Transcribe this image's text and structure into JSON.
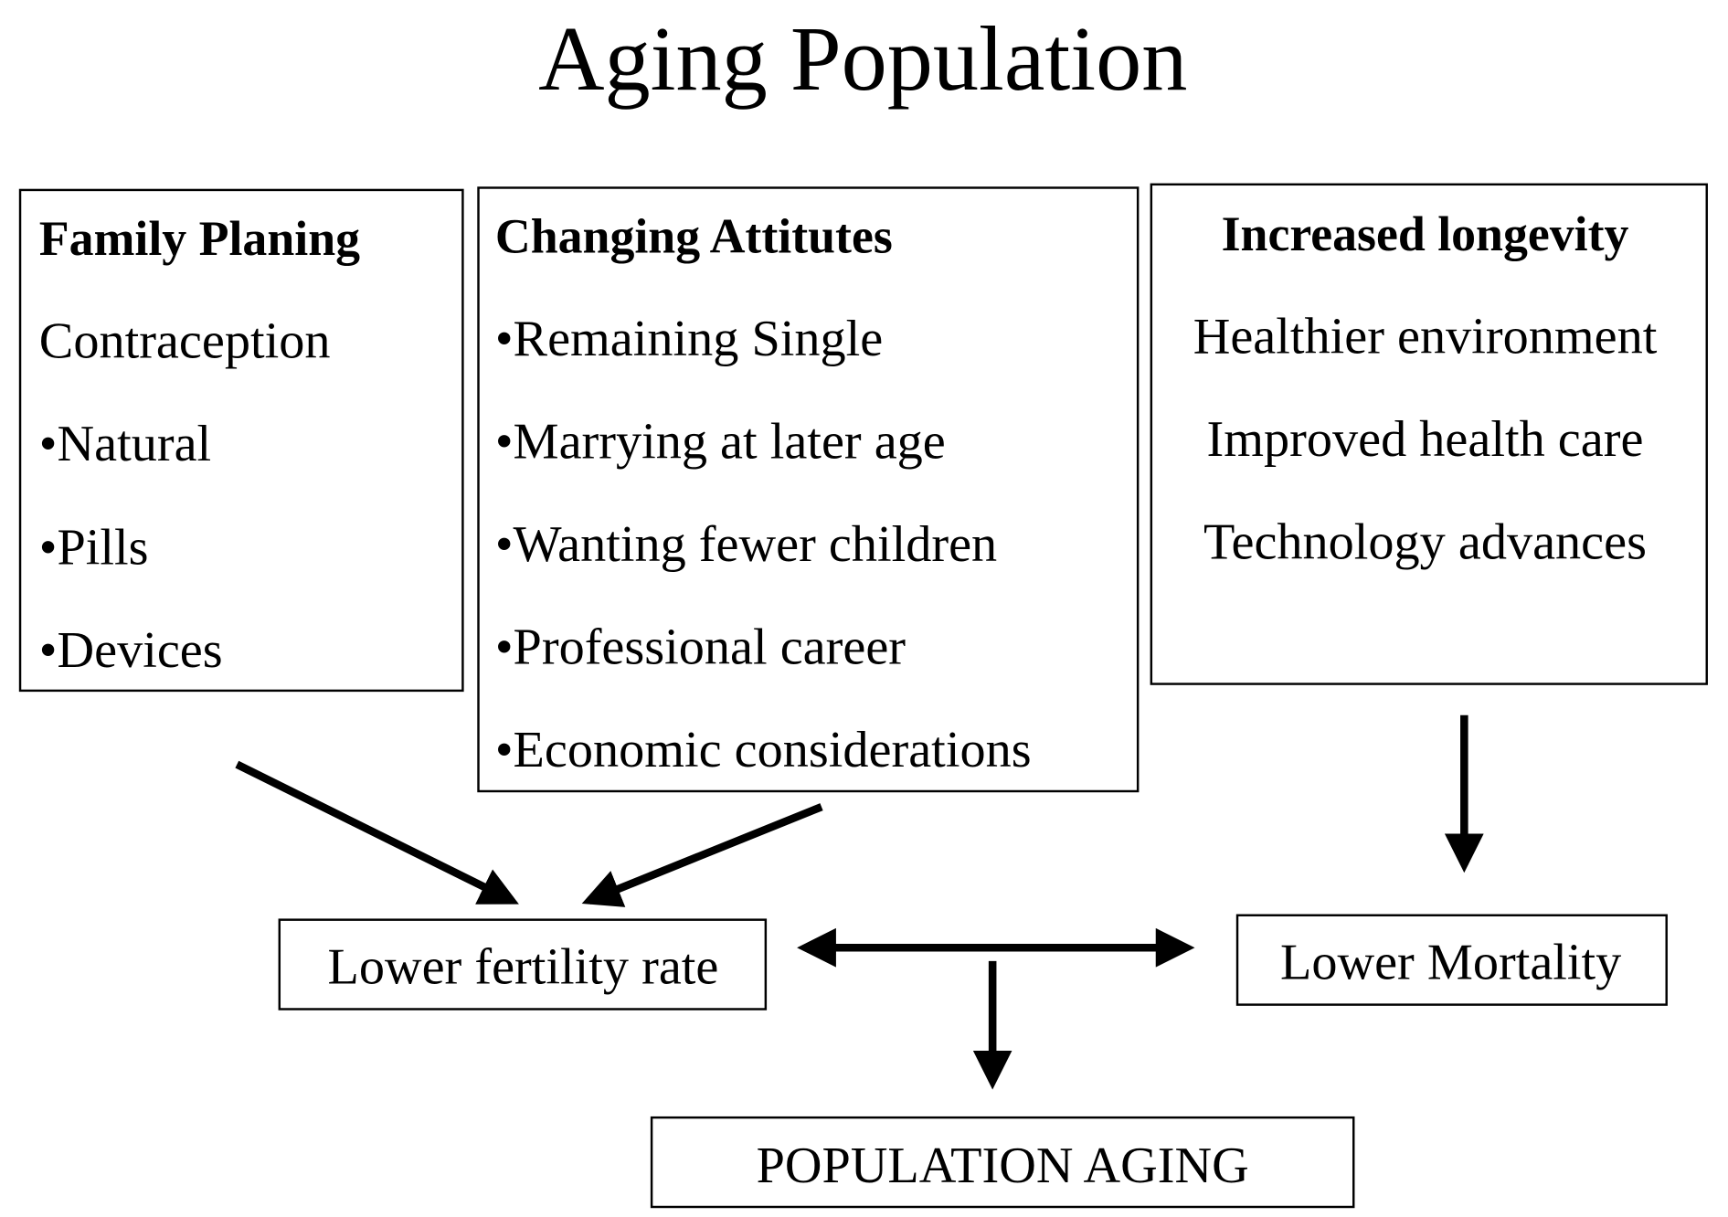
{
  "title": "Aging Population",
  "boxes": [
    {
      "title": "Family Planing",
      "items": [
        "Contraception",
        "•Natural",
        "•Pills",
        "•Devices"
      ]
    },
    {
      "title": "Changing Attitutes",
      "items": [
        "•Remaining Single",
        "•Marrying at later age",
        "•Wanting fewer children",
        "•Professional career",
        "•Economic considerations"
      ]
    },
    {
      "title": "Increased longevity",
      "items": [
        "Healthier environment",
        "Improved health care",
        "Technology advances"
      ]
    }
  ],
  "outcomes": {
    "fertility": "Lower fertility rate",
    "mortality": "Lower Mortality",
    "result": "POPULATION AGING"
  }
}
